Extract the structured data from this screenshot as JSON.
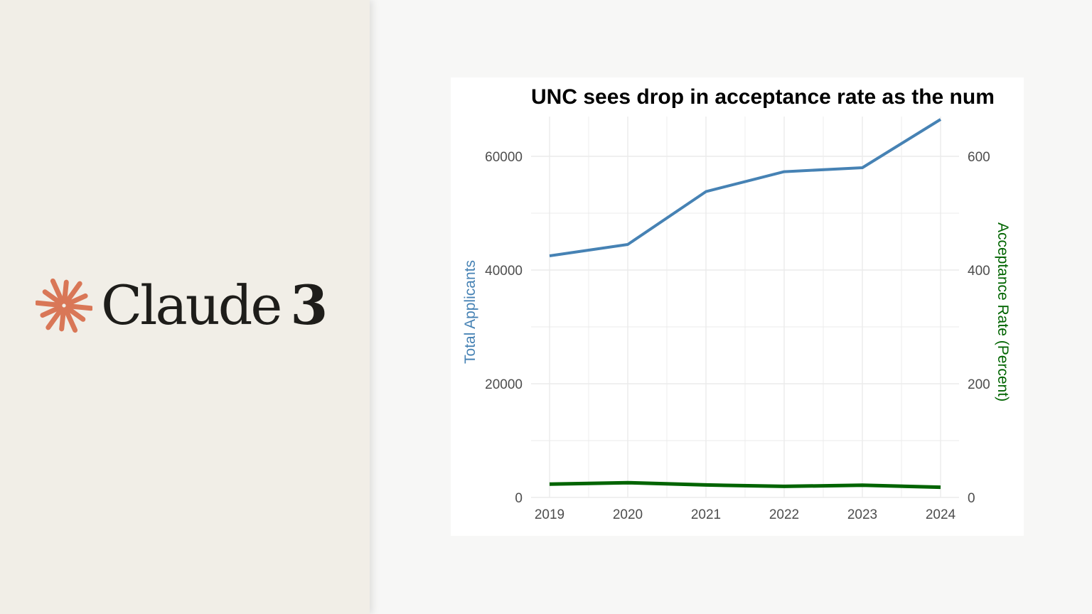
{
  "brand": {
    "name": "Claude",
    "version": "3",
    "mark_icon": "starburst-icon",
    "mark_color": "#d97757"
  },
  "chart_data": {
    "type": "line",
    "title": "UNC sees drop in acceptance rate as the num",
    "x": [
      2019,
      2020,
      2021,
      2022,
      2023,
      2024
    ],
    "ylabel": "Total Applicants",
    "y2label": "Acceptance Rate (Percent)",
    "ylim": [
      0,
      67000
    ],
    "y2lim": [
      0,
      670
    ],
    "yticks": [
      0,
      20000,
      40000,
      60000
    ],
    "y2ticks": [
      0,
      200,
      400,
      600
    ],
    "grid": true,
    "series": [
      {
        "axis": "left",
        "color": "#4682b4",
        "values": [
          42500,
          44500,
          53800,
          57300,
          58000,
          66500
        ]
      },
      {
        "axis": "right",
        "color": "#006400",
        "values": [
          23.5,
          26,
          22,
          19.5,
          21.5,
          18
        ]
      }
    ]
  }
}
